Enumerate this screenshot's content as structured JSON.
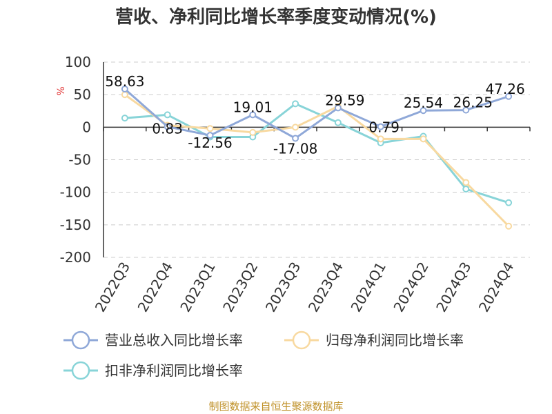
{
  "chart_data": {
    "type": "line",
    "title": "营收、净利同比增长率季度变动情况(%)",
    "ylabel": "%",
    "source": "制图数据来自恒生聚源数据库",
    "categories": [
      "2022Q3",
      "2022Q4",
      "2023Q1",
      "2023Q2",
      "2023Q3",
      "2023Q4",
      "2024Q1",
      "2024Q2",
      "2024Q3",
      "2024Q4"
    ],
    "ylim": [
      -200,
      100
    ],
    "yticks": [
      100,
      50,
      0,
      -50,
      -100,
      -150,
      -200
    ],
    "grid": true,
    "legend_position": "bottom",
    "series": [
      {
        "name": "营业总收入同比增长率",
        "color": "#8fa8d8",
        "values": [
          58.63,
          0.83,
          -12.56,
          19.01,
          -17.08,
          29.59,
          0.79,
          25.54,
          26.25,
          47.26
        ],
        "labels": [
          "58.63",
          "0.83",
          "-12.56",
          "19.01",
          "-17.08",
          "29.59",
          "0.79",
          "25.54",
          "26.25",
          "47.26"
        ]
      },
      {
        "name": "归母净利润同比增长率",
        "color": "#f8d9a0",
        "values": [
          50,
          3,
          -2,
          -8,
          0,
          32,
          -18,
          -18,
          -85,
          -152
        ],
        "labels": []
      },
      {
        "name": "扣非净利润同比增长率",
        "color": "#88d4d8",
        "values": [
          14,
          19,
          -15,
          -15,
          36,
          7,
          -24,
          -14,
          -95,
          -116
        ],
        "labels": []
      }
    ]
  }
}
